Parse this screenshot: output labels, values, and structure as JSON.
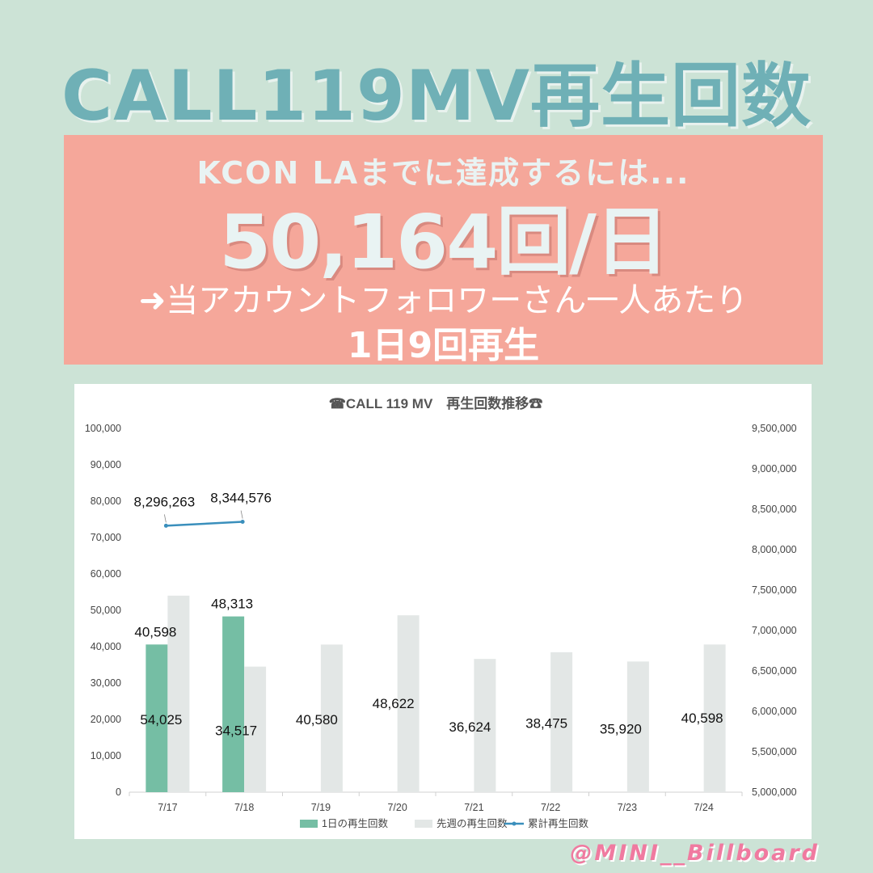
{
  "header": {
    "title": "CALL119MV再生回数"
  },
  "goal": {
    "line1": "KCON LAまでに達成するには...",
    "daily_target": "50,164回/日",
    "per_follower": "➜当アカウントフォロワーさん一人あたり",
    "per_day": "1日9回再生"
  },
  "footer": {
    "handle": "@MINI__Billboard"
  },
  "colors": {
    "background": "#cce3d6",
    "title": "#6fb0b6",
    "goal_box": "#f5a79a",
    "daily_bar": "#75bea4",
    "lastweek_bar": "#e3e7e6",
    "cumulative_line": "#3a8fbc",
    "handle": "#f07aa0"
  },
  "chart_data": {
    "type": "bar",
    "title": "☎CALL 119 MV　再生回数推移☎",
    "categories": [
      "7/17",
      "7/18",
      "7/19",
      "7/20",
      "7/21",
      "7/22",
      "7/23",
      "7/24"
    ],
    "y_left": {
      "range": [
        0,
        100000
      ],
      "ticks": [
        "0",
        "10,000",
        "20,000",
        "30,000",
        "40,000",
        "50,000",
        "60,000",
        "70,000",
        "80,000",
        "90,000",
        "100,000"
      ]
    },
    "y_right": {
      "range": [
        5000000,
        9500000
      ],
      "ticks": [
        "5,000,000",
        "5,500,000",
        "6,000,000",
        "6,500,000",
        "7,000,000",
        "7,500,000",
        "8,000,000",
        "8,500,000",
        "9,000,000",
        "9,500,000"
      ]
    },
    "series": [
      {
        "name": "1日の再生回数",
        "kind": "bar",
        "axis": "left",
        "values": [
          40598,
          48313,
          null,
          null,
          null,
          null,
          null,
          null
        ],
        "labels": [
          "40,598",
          "48,313"
        ]
      },
      {
        "name": "先週の再生回数",
        "kind": "bar",
        "axis": "left",
        "values": [
          54025,
          34517,
          40580,
          48622,
          36624,
          38475,
          35920,
          40598
        ],
        "labels": [
          "54,025",
          "34,517",
          "40,580",
          "48,622",
          "36,624",
          "38,475",
          "35,920",
          "40,598"
        ]
      },
      {
        "name": "累計再生回数",
        "kind": "line",
        "axis": "right",
        "values": [
          8296263,
          8344576,
          null,
          null,
          null,
          null,
          null,
          null
        ],
        "labels": [
          "8,296,263",
          "8,344,576"
        ]
      }
    ],
    "legend_position": "bottom",
    "grid": false
  }
}
